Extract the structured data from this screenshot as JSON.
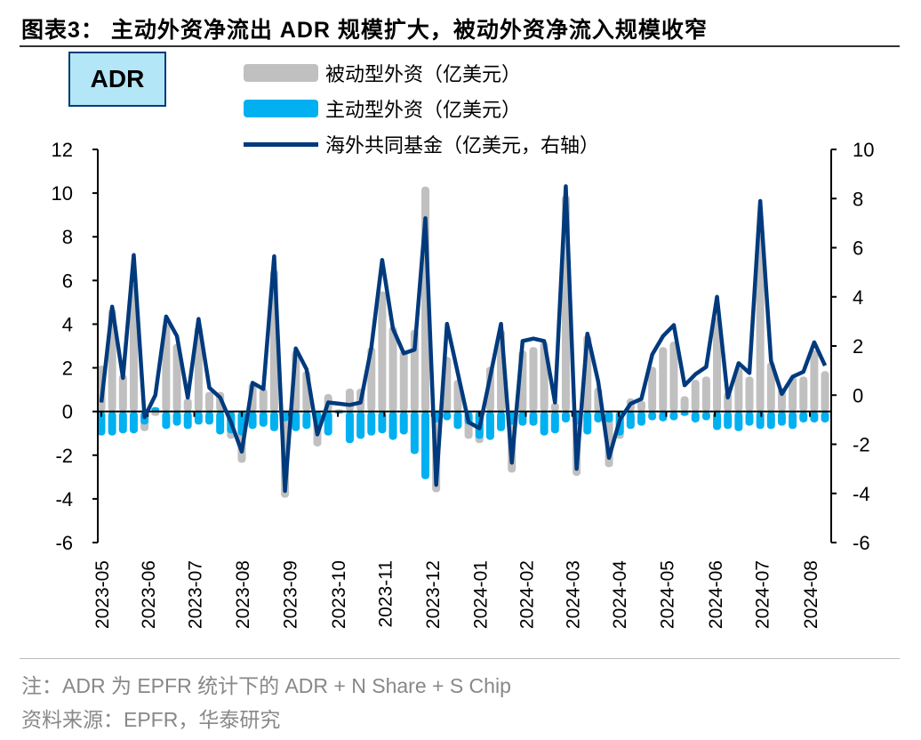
{
  "title": "图表3： 主动外资净流出 ADR 规模扩大，被动外资净流入规模收窄",
  "badge": "ADR",
  "notes": {
    "note": "注：ADR 为 EPFR 统计下的 ADR + N Share + S Chip",
    "source": "资料来源：EPFR，华泰研究"
  },
  "chart_data": {
    "type": "bar+line",
    "frequency": "weekly",
    "legend_position": "top",
    "colors": {
      "passive": "#c0c0c0",
      "active": "#00b0f0",
      "mutual_fund": "#003a7d"
    },
    "left_axis": {
      "ylim": [
        -6,
        12
      ],
      "ticks": [
        -6,
        -4,
        -2,
        0,
        2,
        4,
        6,
        8,
        10,
        12
      ]
    },
    "right_axis": {
      "ylim": [
        -6,
        10
      ],
      "ticks": [
        -6,
        -4,
        -2,
        0,
        2,
        4,
        6,
        8,
        10
      ]
    },
    "x_ticks": [
      {
        "label": "2023-05",
        "week": 0
      },
      {
        "label": "2023-06",
        "week": 4.3
      },
      {
        "label": "2023-07",
        "week": 8.6
      },
      {
        "label": "2023-08",
        "week": 13
      },
      {
        "label": "2023-09",
        "week": 17.4
      },
      {
        "label": "2023-10",
        "week": 21.9
      },
      {
        "label": "2023-11",
        "week": 26.2
      },
      {
        "label": "2023-12",
        "week": 30.6
      },
      {
        "label": "2024-01",
        "week": 35
      },
      {
        "label": "2024-02",
        "week": 39.3
      },
      {
        "label": "2024-03",
        "week": 43.6
      },
      {
        "label": "2024-04",
        "week": 47.9
      },
      {
        "label": "2024-05",
        "week": 52.3
      },
      {
        "label": "2024-06",
        "week": 56.8
      },
      {
        "label": "2024-07",
        "week": 61.1
      },
      {
        "label": "2024-08",
        "week": 65.6
      }
    ],
    "series": [
      {
        "name": "被动型外资（亿美元）",
        "type": "bar",
        "axis": "left",
        "values": [
          2.1,
          4.7,
          1.7,
          5.8,
          -0.9,
          -0.2,
          4.0,
          3.1,
          0.6,
          3.9,
          0.9,
          0.9,
          -1.25,
          -2.35,
          1.3,
          1.05,
          6.5,
          -3.95,
          2.8,
          1.85,
          -1.6,
          0.8,
          0.1,
          1.05,
          1.05,
          2.95,
          5.5,
          3.9,
          2.8,
          3.75,
          10.3,
          -3.7,
          2.5,
          1.45,
          -1.25,
          -1.45,
          2.05,
          3.75,
          -2.8,
          2.8,
          2.95,
          3.2,
          0.4,
          9.9,
          -2.95,
          3.5,
          1.1,
          -2.55,
          -1.25,
          0.6,
          0.5,
          2.05,
          2.95,
          3.2,
          0.7,
          1.45,
          1.6,
          4.3,
          0.9,
          2.0,
          1.6,
          8.1,
          2.25,
          1.05,
          1.6,
          1.6,
          2.8,
          1.85
        ]
      },
      {
        "name": "主动型外资（亿美元）",
        "type": "bar",
        "axis": "left",
        "values": [
          -1.1,
          -1.1,
          -1.0,
          -1.0,
          -0.6,
          0.2,
          -0.8,
          -0.65,
          -0.8,
          -0.6,
          -0.6,
          -1.05,
          -1.0,
          -1.1,
          -0.8,
          -0.7,
          -0.9,
          -0.45,
          -0.9,
          -0.8,
          -0.7,
          -1.1,
          -0.1,
          -1.45,
          -1.25,
          -1.1,
          -1.0,
          -1.3,
          -1.05,
          -1.95,
          -3.1,
          -0.5,
          -0.4,
          -0.8,
          -0.6,
          -1.25,
          -1.3,
          -0.9,
          -0.6,
          -0.65,
          -0.65,
          -1.1,
          -1.0,
          -0.5,
          -0.6,
          -1.05,
          -0.5,
          -0.5,
          -1.1,
          -0.8,
          -0.65,
          -0.4,
          -0.45,
          -0.4,
          -0.2,
          -0.5,
          -0.4,
          -0.85,
          -0.8,
          -0.9,
          -0.65,
          -0.8,
          -0.8,
          -0.65,
          -0.8,
          -0.5,
          -0.5,
          -0.5
        ]
      },
      {
        "name": "海外共同基金（亿美元，右轴）",
        "type": "line",
        "axis": "right",
        "values": [
          -0.3,
          3.6,
          0.7,
          5.7,
          -0.9,
          0.0,
          3.2,
          2.4,
          -0.1,
          3.1,
          0.3,
          -0.1,
          -1.1,
          -2.3,
          0.5,
          0.25,
          5.65,
          -3.9,
          1.9,
          1.05,
          -1.6,
          -0.3,
          -0.35,
          -0.4,
          -0.3,
          1.95,
          5.5,
          2.7,
          1.7,
          1.85,
          7.2,
          -3.65,
          2.9,
          0.9,
          -1.1,
          -1.35,
          0.75,
          2.9,
          -2.75,
          2.2,
          2.3,
          2.2,
          -0.3,
          8.5,
          -3.0,
          2.5,
          0.55,
          -2.55,
          -1.0,
          -0.35,
          -0.15,
          1.65,
          2.4,
          2.85,
          0.4,
          0.85,
          1.15,
          4.0,
          -0.1,
          1.3,
          0.9,
          7.9,
          1.4,
          0.05,
          0.75,
          0.95,
          2.15,
          1.2
        ]
      }
    ]
  }
}
